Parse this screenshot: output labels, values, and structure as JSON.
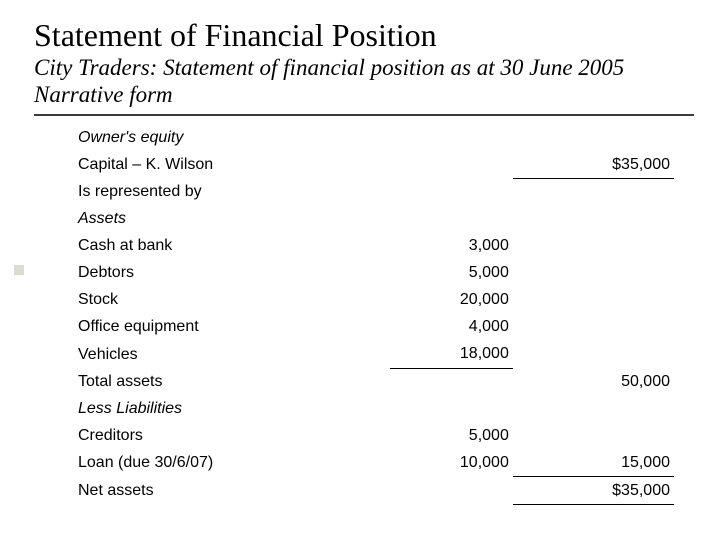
{
  "header": {
    "title": "Statement of Financial Position",
    "subtitle": "City Traders: Statement of financial position as at 30 June 2005 Narrative form"
  },
  "statement": {
    "rows": [
      {
        "label": "Owner's equity",
        "mid": "",
        "right": "",
        "italic": true
      },
      {
        "label": "Capital – K. Wilson",
        "mid": "",
        "right": "$35,000",
        "italic": false,
        "right_border_bottom": true
      },
      {
        "label": "Is represented by",
        "mid": "",
        "right": "",
        "italic": false
      },
      {
        "label": "Assets",
        "mid": "",
        "right": "",
        "italic": true
      },
      {
        "label": "Cash at bank",
        "mid": "3,000",
        "right": "",
        "italic": false
      },
      {
        "label": "Debtors",
        "mid": "5,000",
        "right": "",
        "italic": false
      },
      {
        "label": "Stock",
        "mid": "20,000",
        "right": "",
        "italic": false
      },
      {
        "label": "Office equipment",
        "mid": "4,000",
        "right": "",
        "italic": false
      },
      {
        "label": "Vehicles",
        "mid": "18,000",
        "right": "",
        "italic": false,
        "mid_border_bottom": true
      },
      {
        "label": "Total assets",
        "mid": "",
        "right": "50,000",
        "italic": false
      },
      {
        "label": "Less Liabilities",
        "mid": "",
        "right": "",
        "italic": true
      },
      {
        "label": "Creditors",
        "mid": "5,000",
        "right": "",
        "italic": false
      },
      {
        "label": "Loan (due 30/6/07)",
        "mid": "10,000",
        "right": "15,000",
        "italic": false,
        "right_border_bottom": true
      },
      {
        "label": "Net assets",
        "mid": "",
        "right": "$35,000",
        "italic": false,
        "right_border_bottom": true
      }
    ]
  },
  "colors": {
    "text": "#000000",
    "rule": "#3b3b3b",
    "bullet": "#dcdccf",
    "background": "#ffffff"
  },
  "typography": {
    "title_fontsize_pt": 24,
    "subtitle_fontsize_pt": 17,
    "body_fontsize_pt": 12,
    "serif_family": "Times New Roman",
    "sans_family": "Arial"
  }
}
